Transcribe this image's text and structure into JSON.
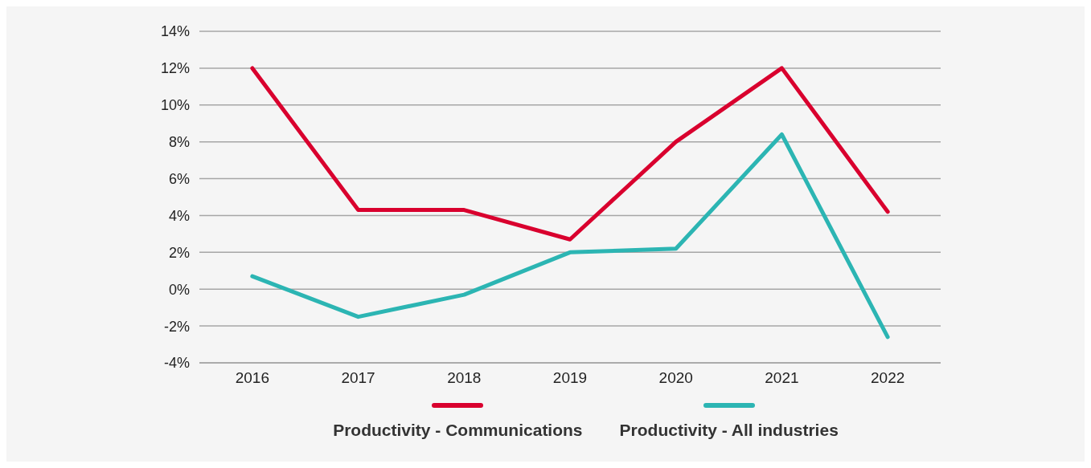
{
  "chart_data": {
    "type": "line",
    "categories": [
      "2016",
      "2017",
      "2018",
      "2019",
      "2020",
      "2021",
      "2022"
    ],
    "series": [
      {
        "name": "Productivity - Communications",
        "color": "#d9002e",
        "values": [
          12,
          4.3,
          4.3,
          2.7,
          8.0,
          12,
          4.2
        ]
      },
      {
        "name": "Productivity - All industries",
        "color": "#2cb5b3",
        "values": [
          0.7,
          -1.5,
          -0.3,
          2.0,
          2.2,
          8.4,
          -2.6
        ]
      }
    ],
    "ylim": [
      -4,
      14
    ],
    "yticks": [
      {
        "value": -4,
        "label": "-4%"
      },
      {
        "value": -2,
        "label": "-2%"
      },
      {
        "value": 0,
        "label": "0%"
      },
      {
        "value": 2,
        "label": "2%"
      },
      {
        "value": 4,
        "label": "4%"
      },
      {
        "value": 6,
        "label": "6%"
      },
      {
        "value": 8,
        "label": "8%"
      },
      {
        "value": 10,
        "label": "10%"
      },
      {
        "value": 12,
        "label": "12%"
      },
      {
        "value": 14,
        "label": "14%"
      }
    ],
    "grid": "y",
    "legend": "bottom",
    "marker": "none",
    "line_style": "solid"
  }
}
